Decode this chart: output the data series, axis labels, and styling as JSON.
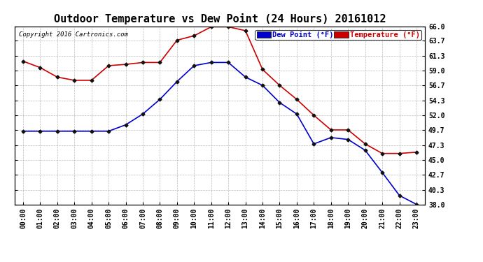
{
  "title": "Outdoor Temperature vs Dew Point (24 Hours) 20161012",
  "copyright": "Copyright 2016 Cartronics.com",
  "legend_dew": "Dew Point (°F)",
  "legend_temp": "Temperature (°F)",
  "hours": [
    "00:00",
    "01:00",
    "02:00",
    "03:00",
    "04:00",
    "05:00",
    "06:00",
    "07:00",
    "08:00",
    "09:00",
    "10:00",
    "11:00",
    "12:00",
    "13:00",
    "14:00",
    "15:00",
    "16:00",
    "17:00",
    "18:00",
    "19:00",
    "20:00",
    "21:00",
    "22:00",
    "23:00"
  ],
  "temperature": [
    60.5,
    59.5,
    58.0,
    57.5,
    57.5,
    59.8,
    60.0,
    60.3,
    60.3,
    63.8,
    64.5,
    65.9,
    65.9,
    65.3,
    59.2,
    56.7,
    54.5,
    52.0,
    49.7,
    49.7,
    47.5,
    46.0,
    46.0,
    46.2
  ],
  "dew_point": [
    49.5,
    49.5,
    49.5,
    49.5,
    49.5,
    49.5,
    50.5,
    52.2,
    54.5,
    57.3,
    59.8,
    60.3,
    60.3,
    58.0,
    56.7,
    54.0,
    52.2,
    47.5,
    48.5,
    48.2,
    46.5,
    43.0,
    39.4,
    38.0
  ],
  "temp_color": "#cc0000",
  "dew_color": "#0000cc",
  "bg_color": "#ffffff",
  "grid_color": "#aaaaaa",
  "ylim_min": 38.0,
  "ylim_max": 66.0,
  "yticks": [
    38.0,
    40.3,
    42.7,
    45.0,
    47.3,
    49.7,
    52.0,
    54.3,
    56.7,
    59.0,
    61.3,
    63.7,
    66.0
  ],
  "title_fontsize": 11,
  "copyright_fontsize": 6.5,
  "tick_fontsize": 7,
  "legend_fontsize": 7.5
}
